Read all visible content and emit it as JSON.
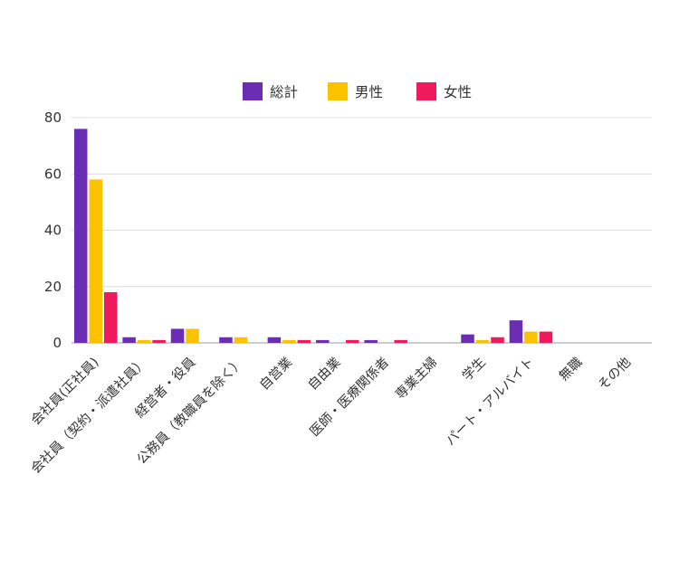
{
  "chart_data": {
    "type": "bar",
    "categories": [
      "会社員(正社員)",
      "会社員（契約・派遣社員）",
      "経営者・役員",
      "公務員（教職員を除く）",
      "自営業",
      "自由業",
      "医師・医療関係者",
      "専業主婦",
      "学生",
      "パート・アルバイト",
      "無職",
      "その他"
    ],
    "series": [
      {
        "name": "総計",
        "color": "#6a2db3",
        "values": [
          76,
          2,
          5,
          2,
          2,
          1,
          1,
          0,
          3,
          8,
          0,
          0
        ]
      },
      {
        "name": "男性",
        "color": "#fbc200",
        "values": [
          58,
          1,
          5,
          2,
          1,
          0,
          0,
          0,
          1,
          4,
          0,
          0
        ]
      },
      {
        "name": "女性",
        "color": "#ee1a5b",
        "values": [
          18,
          1,
          0,
          0,
          1,
          1,
          1,
          0,
          2,
          4,
          0,
          0
        ]
      }
    ],
    "ylim": [
      0,
      80
    ],
    "yticks": [
      0,
      20,
      40,
      60,
      80
    ],
    "grid": true,
    "legend": "top-center",
    "title": "",
    "xlabel": "",
    "ylabel": ""
  }
}
